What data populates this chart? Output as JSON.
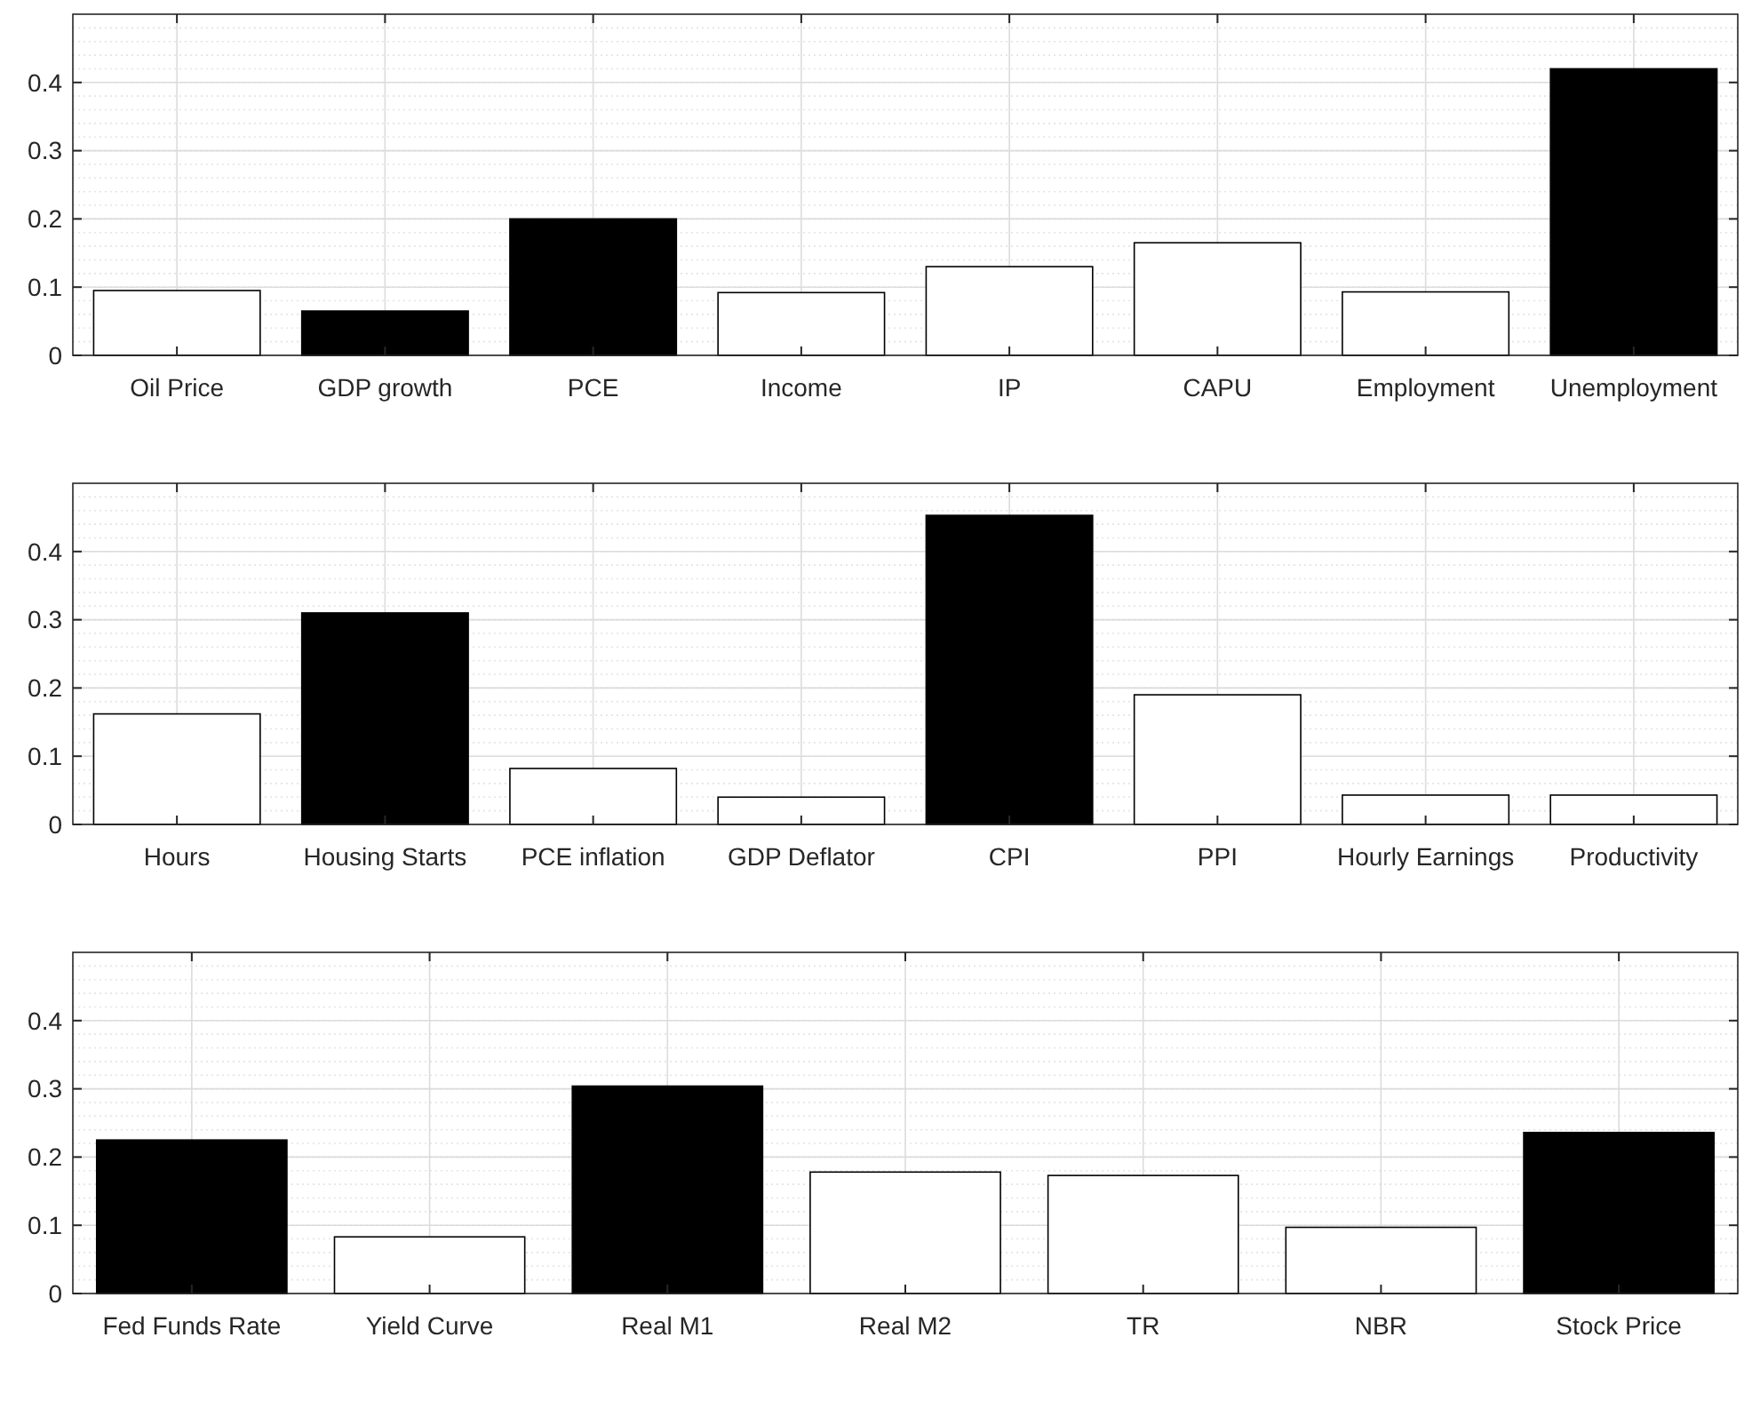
{
  "chart_data": [
    {
      "type": "bar",
      "categories": [
        "Oil Price",
        "GDP growth",
        "PCE",
        "Income",
        "IP",
        "CAPU",
        "Employment",
        "Unemployment"
      ],
      "values": [
        0.095,
        0.065,
        0.2,
        0.092,
        0.13,
        0.165,
        0.093,
        0.42
      ],
      "colors": [
        "#ffffff",
        "#000000",
        "#000000",
        "#ffffff",
        "#ffffff",
        "#ffffff",
        "#ffffff",
        "#000000"
      ],
      "ylim": [
        0,
        0.5
      ],
      "yticks": [
        0,
        0.1,
        0.2,
        0.3,
        0.4
      ],
      "grid": true
    },
    {
      "type": "bar",
      "categories": [
        "Hours",
        "Housing Starts",
        "PCE inflation",
        "GDP Deflator",
        "CPI",
        "PPI",
        "Hourly Earnings",
        "Productivity"
      ],
      "values": [
        0.162,
        0.31,
        0.082,
        0.04,
        0.453,
        0.19,
        0.043,
        0.043
      ],
      "colors": [
        "#ffffff",
        "#000000",
        "#ffffff",
        "#ffffff",
        "#000000",
        "#ffffff",
        "#ffffff",
        "#ffffff"
      ],
      "ylim": [
        0,
        0.5
      ],
      "yticks": [
        0,
        0.1,
        0.2,
        0.3,
        0.4
      ],
      "grid": true
    },
    {
      "type": "bar",
      "categories": [
        "Fed Funds Rate",
        "Yield Curve",
        "Real M1",
        "Real M2",
        "TR",
        "NBR",
        "Stock Price"
      ],
      "values": [
        0.225,
        0.083,
        0.304,
        0.178,
        0.173,
        0.097,
        0.236
      ],
      "colors": [
        "#000000",
        "#ffffff",
        "#000000",
        "#ffffff",
        "#ffffff",
        "#ffffff",
        "#000000"
      ],
      "ylim": [
        0,
        0.5
      ],
      "yticks": [
        0,
        0.1,
        0.2,
        0.3,
        0.4
      ],
      "grid": true
    }
  ]
}
